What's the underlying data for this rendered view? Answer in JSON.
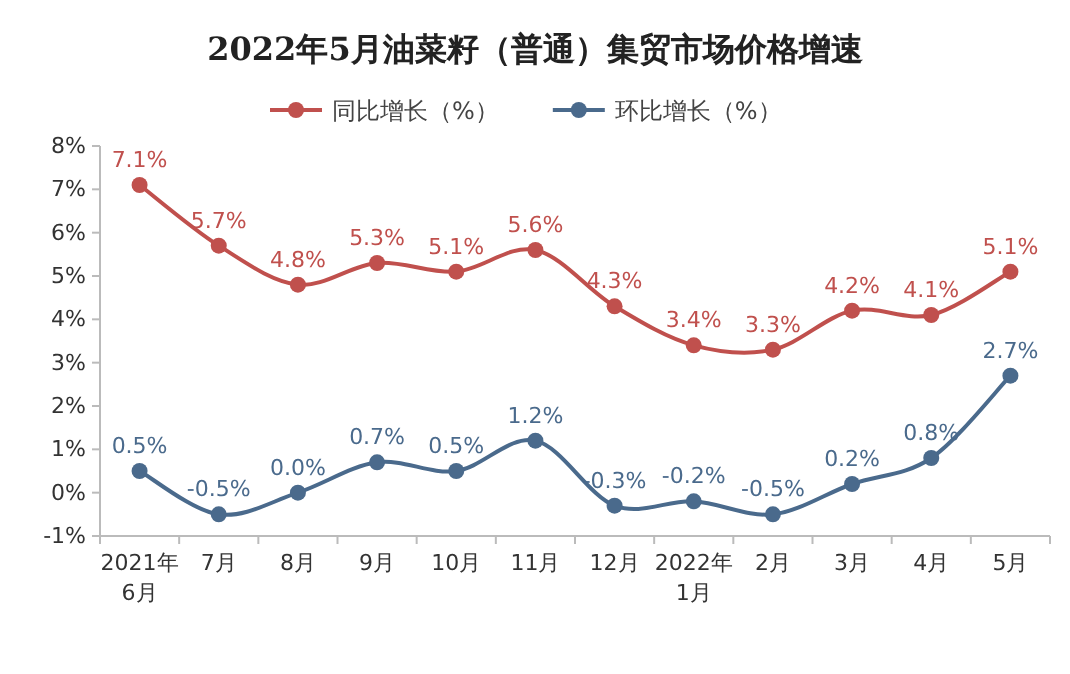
{
  "chart_data": {
    "type": "line",
    "title": "2022年5月油菜籽（普通）集贸市场价格增速",
    "categories": [
      "2021年\n6月",
      "7月",
      "8月",
      "9月",
      "10月",
      "11月",
      "12月",
      "2022年\n1月",
      "2月",
      "3月",
      "4月",
      "5月"
    ],
    "series": [
      {
        "name": "同比增长（%）",
        "color": "#c0504d",
        "values": [
          7.1,
          5.7,
          4.8,
          5.3,
          5.1,
          5.6,
          4.3,
          3.4,
          3.3,
          4.2,
          4.1,
          5.1
        ],
        "value_labels": [
          "7.1%",
          "5.7%",
          "4.8%",
          "5.3%",
          "5.1%",
          "5.6%",
          "4.3%",
          "3.4%",
          "3.3%",
          "4.2%",
          "4.1%",
          "5.1%"
        ]
      },
      {
        "name": "环比增长（%）",
        "color": "#4a6a8c",
        "values": [
          0.5,
          -0.5,
          0.0,
          0.7,
          0.5,
          1.2,
          -0.3,
          -0.2,
          -0.5,
          0.2,
          0.8,
          2.7
        ],
        "value_labels": [
          "0.5%",
          "-0.5%",
          "0.0%",
          "0.7%",
          "0.5%",
          "1.2%",
          "-0.3%",
          "-0.2%",
          "-0.5%",
          "0.2%",
          "0.8%",
          "2.7%"
        ]
      }
    ],
    "ylim": [
      -1,
      8
    ],
    "yticks": [
      {
        "value": -1,
        "label": "-1%"
      },
      {
        "value": 0,
        "label": "0%"
      },
      {
        "value": 1,
        "label": "1%"
      },
      {
        "value": 2,
        "label": "2%"
      },
      {
        "value": 3,
        "label": "3%"
      },
      {
        "value": 4,
        "label": "4%"
      },
      {
        "value": 5,
        "label": "5%"
      },
      {
        "value": 6,
        "label": "6%"
      },
      {
        "value": 7,
        "label": "7%"
      },
      {
        "value": 8,
        "label": "8%"
      }
    ],
    "legend": "top",
    "marker": "circle",
    "line_style": "solid",
    "grid": false
  }
}
